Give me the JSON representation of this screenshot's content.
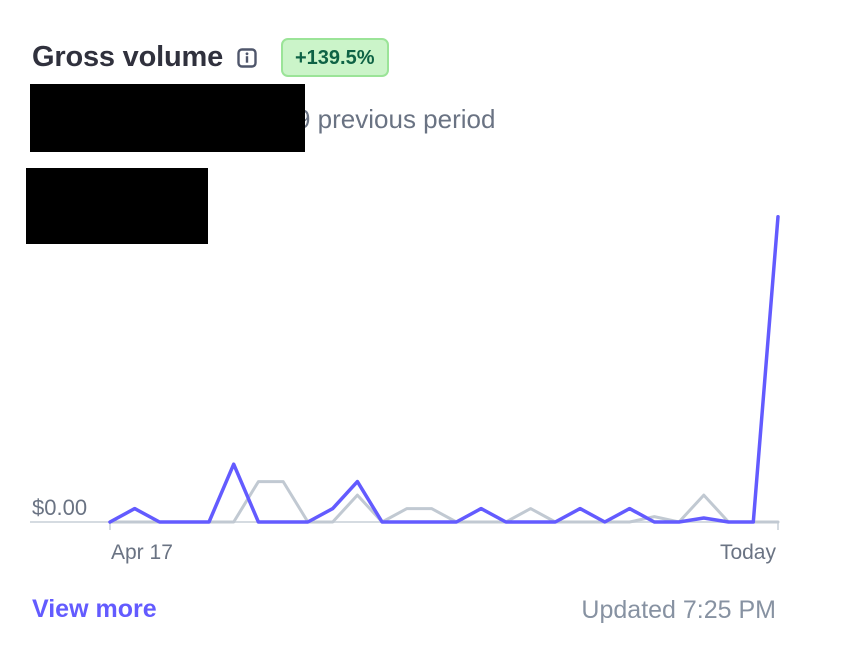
{
  "header": {
    "title": "Gross volume",
    "info_icon": "info-icon",
    "change_badge": "+139.5%"
  },
  "comparison": {
    "suffix_text": "9 previous period"
  },
  "colors": {
    "current_series": "#635bff",
    "previous_series": "#c1c9d2",
    "badge_bg": "#cbf4c9",
    "badge_text": "#0e6245",
    "link": "#635bff"
  },
  "chart_data": {
    "type": "line",
    "y_tick_label": "$0.00",
    "x_tick_labels": [
      "Apr 17",
      "Today"
    ],
    "grid": false,
    "note_scale": "relative units, y axis unlabeled except $0.00",
    "series": [
      {
        "key": "current",
        "values": [
          0,
          1,
          0,
          0,
          0,
          4.3,
          0,
          0,
          0,
          1,
          3,
          0,
          0,
          0,
          0,
          1,
          0,
          0,
          0,
          1,
          0,
          1,
          0,
          0,
          0.3,
          0,
          0,
          22.7
        ]
      },
      {
        "key": "previous",
        "values": [
          0,
          0,
          0,
          0,
          0,
          0,
          3,
          3,
          0,
          0,
          2,
          0,
          1,
          1,
          0,
          0,
          0,
          1,
          0,
          0,
          0,
          0,
          0.4,
          0,
          2,
          0,
          0,
          0
        ]
      }
    ]
  },
  "footer": {
    "view_more": "View more",
    "updated": "Updated 7:25 PM"
  }
}
